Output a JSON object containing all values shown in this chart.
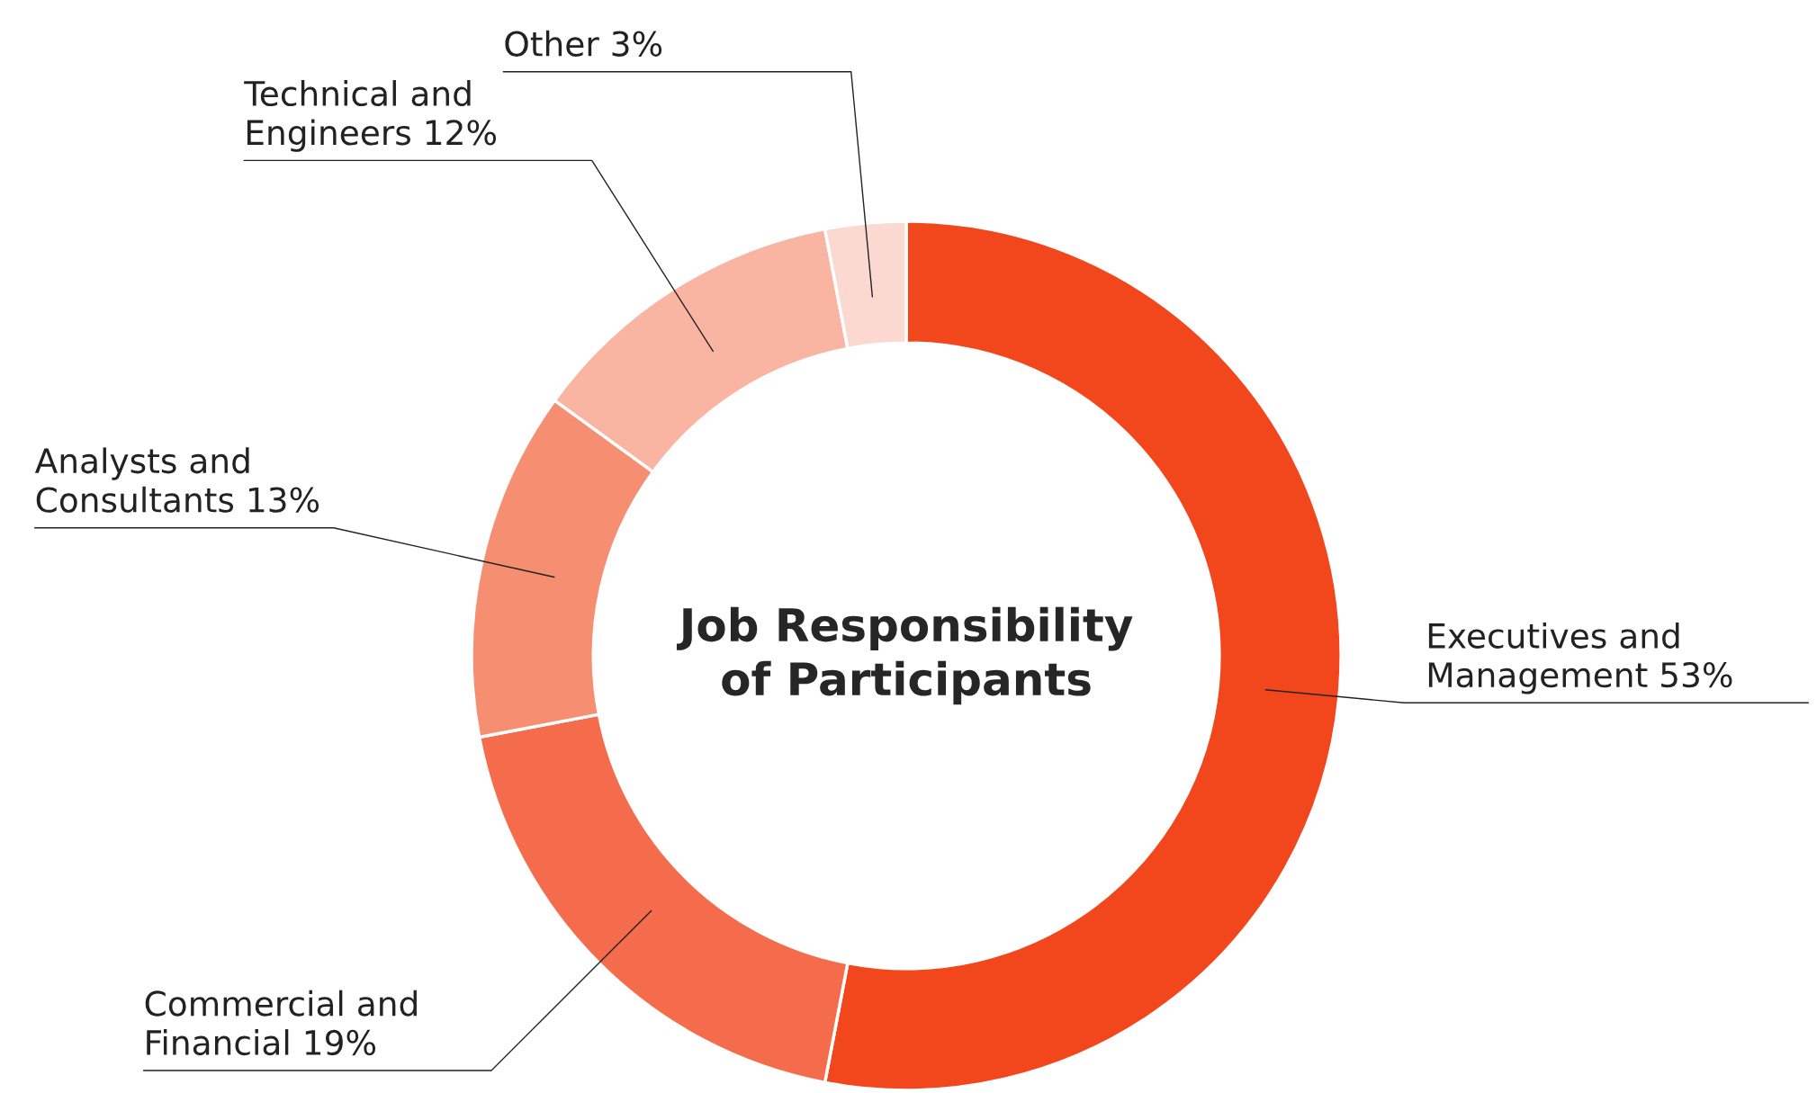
{
  "chart_data": {
    "type": "donut",
    "title": "Job Responsibility\nof Participants",
    "categories": [
      "Executives and\nManagement 53%",
      "Commercial and\nFinancial 19%",
      "Analysts and\nConsultants 13%",
      "Technical and\nEngineers 12%",
      "Other 3%"
    ],
    "values": [
      53,
      19,
      13,
      12,
      3
    ],
    "colors": [
      "#f2461d",
      "#f46c4b",
      "#f68e72",
      "#f9b4a2",
      "#fcd9d0"
    ],
    "legend": false
  }
}
